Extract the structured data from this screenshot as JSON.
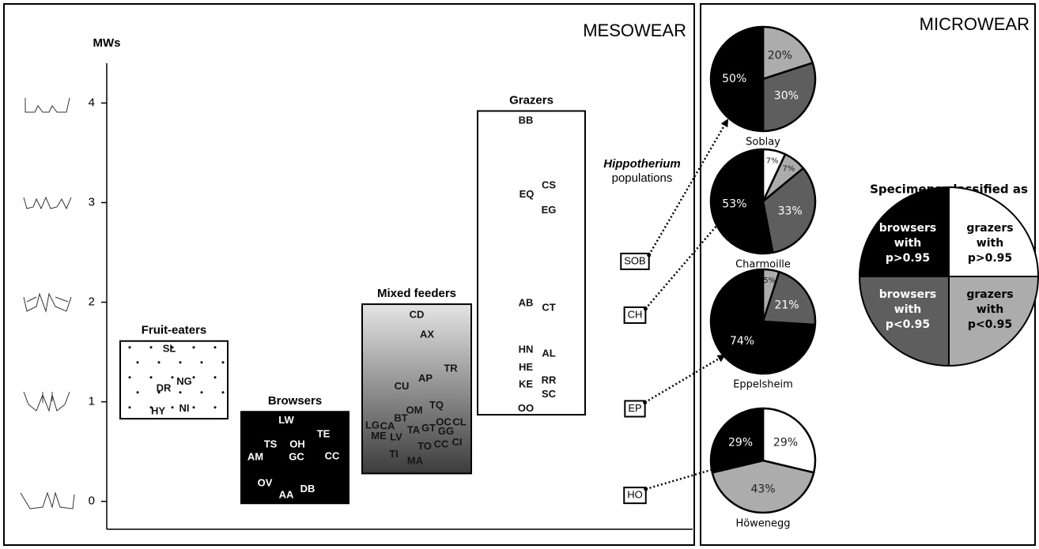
{
  "chart_data": [
    {
      "type": "mesowear",
      "title": "MESOWEAR",
      "y_label": "MWs",
      "ylim": [
        -0.28,
        4.4
      ],
      "yticks": [
        0,
        1,
        2,
        3,
        4
      ],
      "groups": [
        {
          "name": "Fruit-eaters",
          "range": [
            0.83,
            1.61
          ],
          "fill": "#ffffff",
          "text_color": "#111111",
          "labels": [
            "SL",
            "NG",
            "DR",
            "NI",
            "HY"
          ],
          "values": [
            1.53,
            1.2,
            1.13,
            0.93,
            0.9
          ]
        },
        {
          "name": "Browsers",
          "range": [
            -0.02,
            0.9
          ],
          "fill": "#000000",
          "text_color": "#ffffff",
          "labels": [
            "LW",
            "TE",
            "TS",
            "OH",
            "GC",
            "AM",
            "CC",
            "OV",
            "DB",
            "AA"
          ],
          "values": [
            0.81,
            0.67,
            0.57,
            0.57,
            0.44,
            0.44,
            0.45,
            0.18,
            0.12,
            0.06
          ]
        },
        {
          "name": "Mixed feeders",
          "range": [
            0.28,
            1.98
          ],
          "fill": [
            "#e4e4e4",
            "#3c3c3c"
          ],
          "text_color": "#151515",
          "labels": [
            "CD",
            "AX",
            "TR",
            "AP",
            "CU",
            "OM",
            "TQ",
            "BT",
            "OC",
            "CL",
            "LG",
            "CA",
            "GT",
            "TA",
            "GG",
            "ME",
            "LV",
            "TO",
            "CC",
            "CI",
            "TI",
            "MA"
          ],
          "values": [
            1.87,
            1.67,
            1.33,
            1.23,
            1.15,
            0.91,
            0.96,
            0.83,
            0.79,
            0.79,
            0.76,
            0.75,
            0.73,
            0.71,
            0.7,
            0.65,
            0.64,
            0.55,
            0.57,
            0.59,
            0.47,
            0.4
          ]
        },
        {
          "name": "Grazers",
          "range": [
            0.87,
            3.92
          ],
          "fill": "#ffffff",
          "text_color": "#111111",
          "labels": [
            "BB",
            "EQ",
            "CS",
            "EG",
            "AB",
            "CT",
            "HN",
            "AL",
            "HE",
            "RR",
            "KE",
            "SC",
            "OO"
          ],
          "values": [
            3.82,
            3.08,
            3.17,
            2.92,
            1.99,
            1.94,
            1.52,
            1.48,
            1.34,
            1.21,
            1.17,
            1.07,
            0.93
          ]
        }
      ],
      "populations_title": [
        "Hippotherium",
        "populations"
      ],
      "populations": {
        "labels": [
          "SOB",
          "CH",
          "EP",
          "HO"
        ],
        "values": [
          2.41,
          1.87,
          0.93,
          0.06
        ]
      }
    },
    {
      "type": "pie",
      "title": "MICROWEAR",
      "legend_title": "Specimens classified as",
      "categories": [
        [
          "grazers",
          "with",
          "p>0.95"
        ],
        [
          "grazers",
          "with",
          "p<0.95"
        ],
        [
          "browsers",
          "with",
          "p<0.95"
        ],
        [
          "browsers",
          "with",
          "p>0.95"
        ]
      ],
      "colors": [
        "#ffffff",
        "#acacac",
        "#5e5e5e",
        "#000000"
      ],
      "pies": [
        {
          "name": "Soblay",
          "values": [
            null,
            20,
            30,
            50
          ],
          "value_labels": [
            null,
            "20%",
            "30%",
            "50%"
          ]
        },
        {
          "name": "Charmoille",
          "values": [
            7,
            7,
            33,
            53
          ],
          "value_labels": [
            "7%",
            "7%",
            "33%",
            "53%"
          ]
        },
        {
          "name": "Eppelsheim",
          "values": [
            null,
            5,
            21,
            74
          ],
          "value_labels": [
            null,
            "5%",
            "21%",
            "74%"
          ]
        },
        {
          "name": "Höwenegg",
          "values": [
            29,
            43,
            null,
            29
          ],
          "value_labels": [
            "29%",
            "43%",
            null,
            "29%"
          ]
        }
      ]
    }
  ]
}
